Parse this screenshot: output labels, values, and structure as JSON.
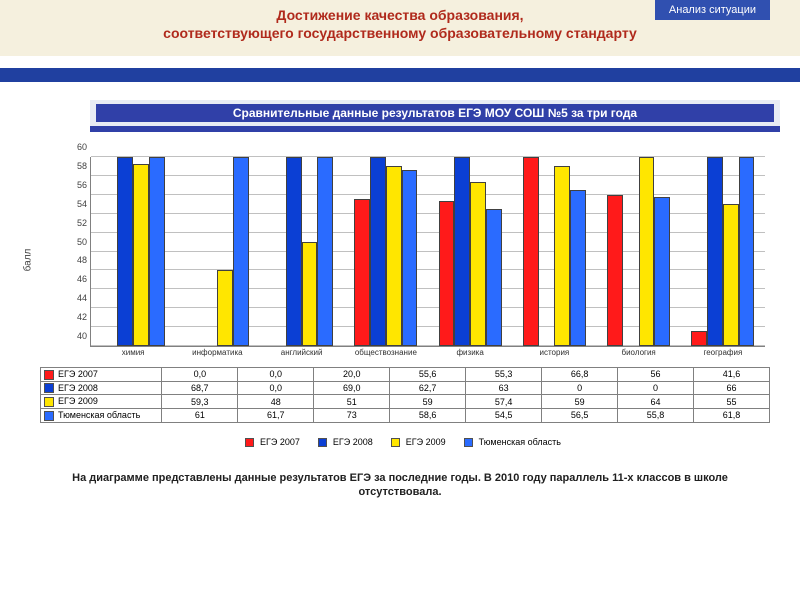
{
  "header": {
    "title_line1": "Достижение качества образования,",
    "title_line2": "соответствующего государственному образовательному стандарту",
    "badge": "Анализ ситуации"
  },
  "subheader": "Сравнительные данные результатов ЕГЭ МОУ СОШ №5 за три года",
  "chart": {
    "type": "bar",
    "ylabel": "балл",
    "ylim": [
      40,
      60
    ],
    "ytick_step": 2,
    "yticks": [
      40,
      42,
      44,
      46,
      48,
      50,
      52,
      54,
      56,
      58,
      60
    ],
    "background_color": "#ffffff",
    "grid_color": "#c0c0c0",
    "categories": [
      "химия",
      "информатика",
      "английский",
      "обществознание",
      "физика",
      "история",
      "биология",
      "география"
    ],
    "series": [
      {
        "name": "ЕГЭ 2007",
        "color": "#ff1a1a",
        "values": [
          0.0,
          0.0,
          20.0,
          55.6,
          55.3,
          66.8,
          56,
          41.6
        ]
      },
      {
        "name": "ЕГЭ 2008",
        "color": "#0b3fd4",
        "values": [
          68.7,
          0.0,
          69.0,
          62.7,
          63,
          0,
          0,
          66
        ]
      },
      {
        "name": "ЕГЭ 2009",
        "color": "#ffe600",
        "values": [
          59.3,
          48,
          51,
          59,
          57.4,
          59,
          64,
          55
        ]
      },
      {
        "name": "Тюменская область",
        "color": "#2a6bff",
        "values": [
          61,
          61.7,
          73,
          58.6,
          54.5,
          56.5,
          55.8,
          61.8
        ]
      }
    ],
    "bar_group_gap": 0.25,
    "bar_border": "#404040"
  },
  "legend_label_prefix": "",
  "footnote": "На диаграмме представлены данные результатов ЕГЭ за последние годы. В 2010 году параллель 11-х классов в школе отсутствовала."
}
